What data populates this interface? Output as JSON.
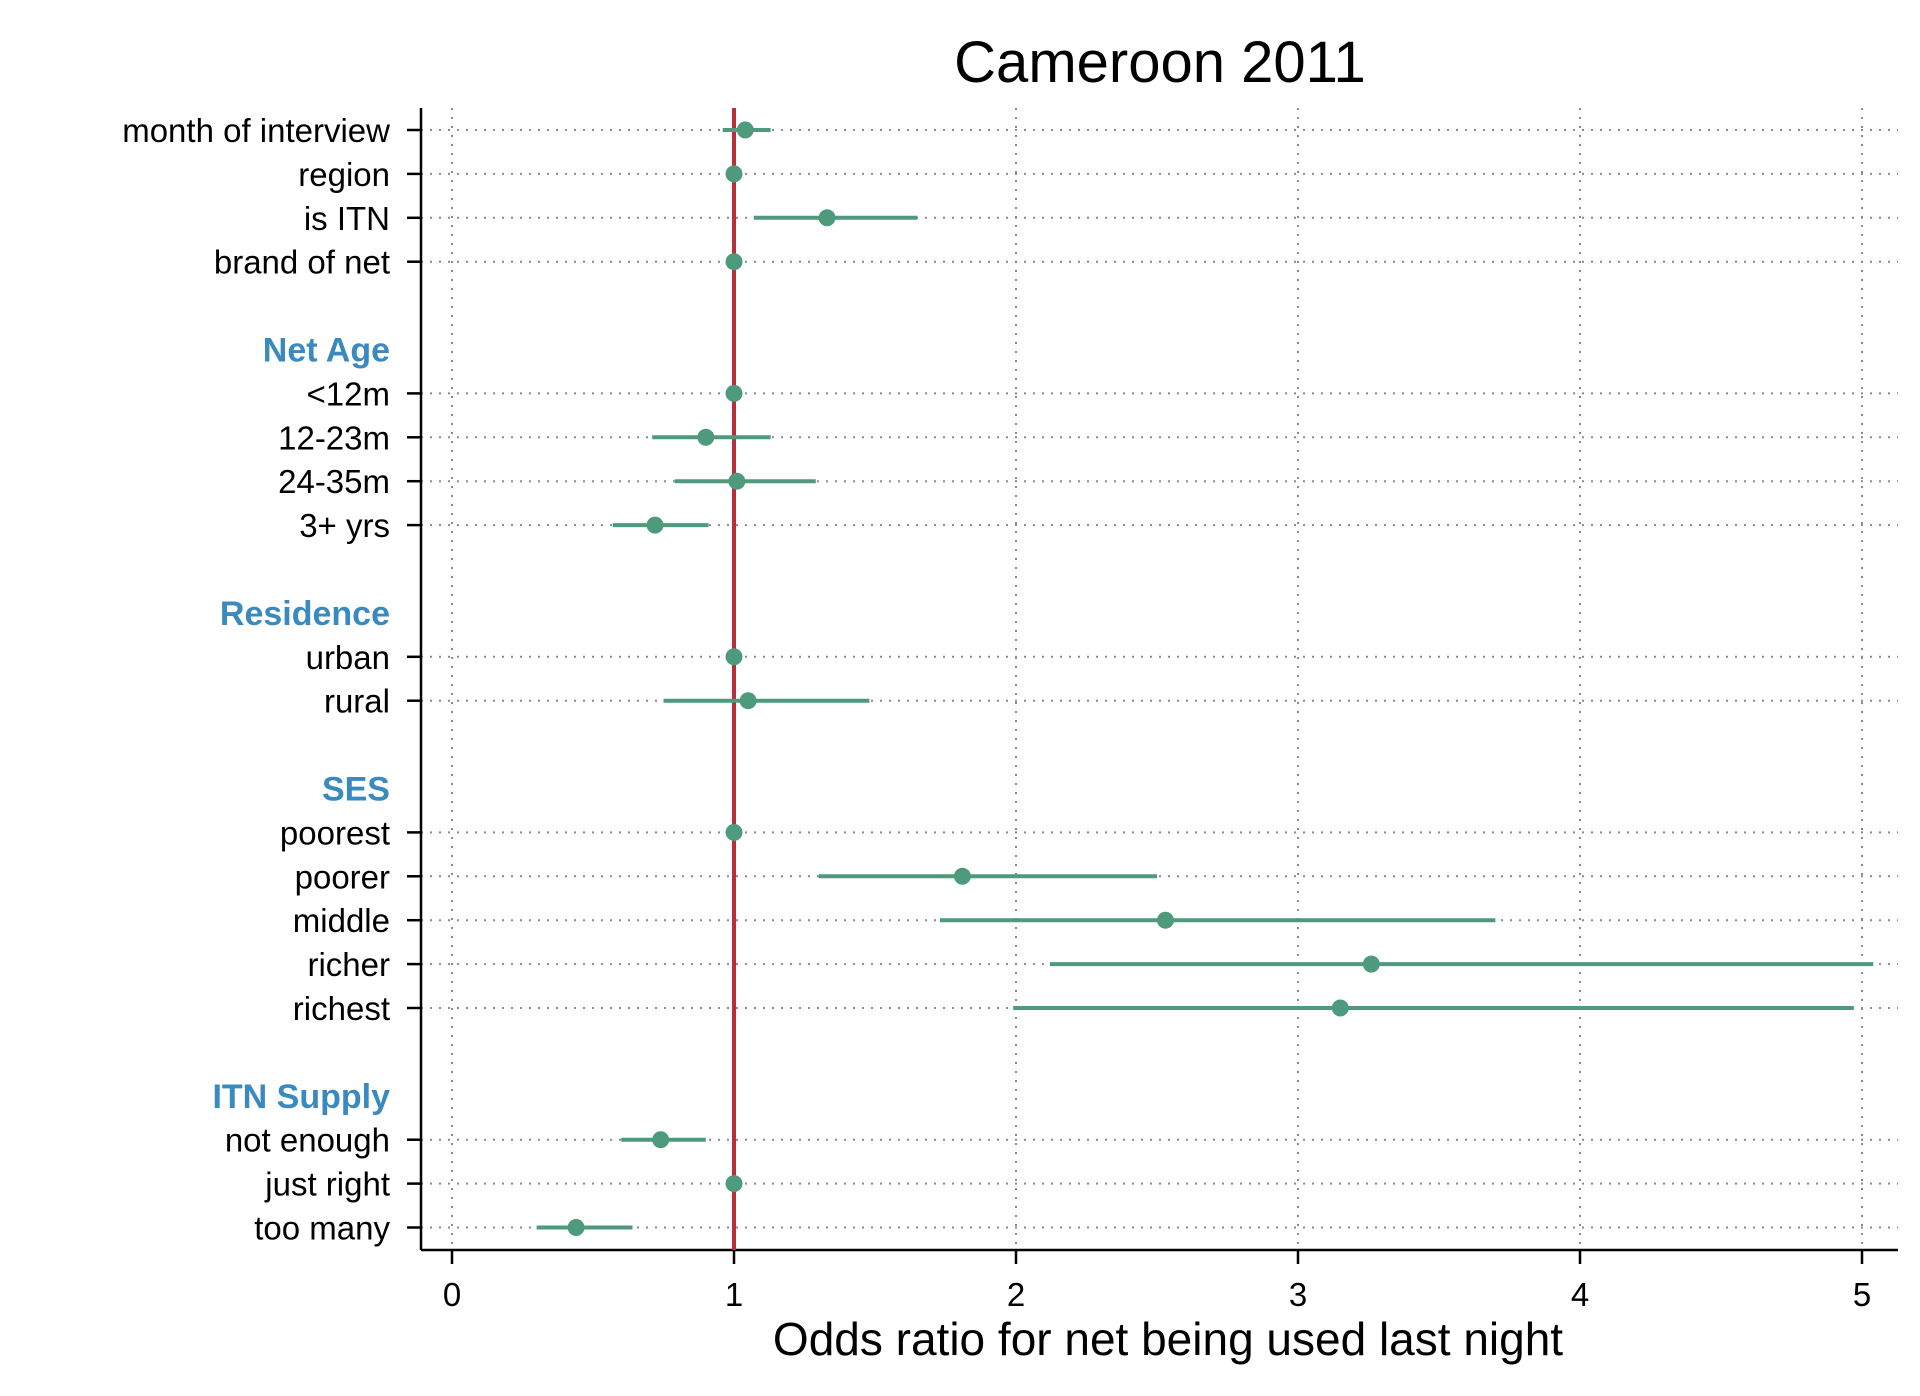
{
  "chart_data": {
    "type": "scatter",
    "subtype": "coefficient-plot-with-confidence-intervals",
    "title": "Cameroon 2011",
    "xlabel": "Odds ratio for net being used last night",
    "xlim": [
      -0.1,
      5.15
    ],
    "xticks": [
      "0",
      "1",
      "2",
      "3",
      "4",
      "5"
    ],
    "reference_line": 1,
    "grid": "dotted",
    "colors": {
      "marker": "#4e9a7c",
      "reference_line": "#b5303a",
      "group_label": "#3a8abf",
      "axis": "#000000",
      "grid": "#8a8a8a"
    },
    "rows": [
      {
        "label": "month of interview",
        "kind": "item",
        "estimate": 1.04,
        "ci": [
          0.96,
          1.13
        ]
      },
      {
        "label": "region",
        "kind": "item",
        "estimate": 1.0,
        "ci": [
          1.0,
          1.0
        ]
      },
      {
        "label": "is ITN",
        "kind": "item",
        "estimate": 1.33,
        "ci": [
          1.07,
          1.65
        ]
      },
      {
        "label": "brand of net",
        "kind": "item",
        "estimate": 1.0,
        "ci": [
          1.0,
          1.0
        ]
      },
      {
        "label": "",
        "kind": "spacer"
      },
      {
        "label": "Net Age",
        "kind": "group"
      },
      {
        "label": "<12m",
        "kind": "item",
        "estimate": 1.0,
        "ci": [
          1.0,
          1.0
        ]
      },
      {
        "label": "12-23m",
        "kind": "item",
        "estimate": 0.9,
        "ci": [
          0.71,
          1.13
        ]
      },
      {
        "label": "24-35m",
        "kind": "item",
        "estimate": 1.01,
        "ci": [
          0.79,
          1.29
        ]
      },
      {
        "label": "3+ yrs",
        "kind": "item",
        "estimate": 0.72,
        "ci": [
          0.57,
          0.91
        ]
      },
      {
        "label": "",
        "kind": "spacer"
      },
      {
        "label": "Residence",
        "kind": "group"
      },
      {
        "label": "urban",
        "kind": "item",
        "estimate": 1.0,
        "ci": [
          1.0,
          1.0
        ]
      },
      {
        "label": "rural",
        "kind": "item",
        "estimate": 1.05,
        "ci": [
          0.75,
          1.48
        ]
      },
      {
        "label": "",
        "kind": "spacer"
      },
      {
        "label": "SES",
        "kind": "group"
      },
      {
        "label": "poorest",
        "kind": "item",
        "estimate": 1.0,
        "ci": [
          1.0,
          1.0
        ]
      },
      {
        "label": "poorer",
        "kind": "item",
        "estimate": 1.81,
        "ci": [
          1.3,
          2.5
        ]
      },
      {
        "label": "middle",
        "kind": "item",
        "estimate": 2.53,
        "ci": [
          1.73,
          3.7
        ]
      },
      {
        "label": "richer",
        "kind": "item",
        "estimate": 3.26,
        "ci": [
          2.12,
          5.04
        ]
      },
      {
        "label": "richest",
        "kind": "item",
        "estimate": 3.15,
        "ci": [
          1.99,
          4.97
        ]
      },
      {
        "label": "",
        "kind": "spacer"
      },
      {
        "label": "ITN Supply",
        "kind": "group"
      },
      {
        "label": "not enough",
        "kind": "item",
        "estimate": 0.74,
        "ci": [
          0.6,
          0.9
        ]
      },
      {
        "label": "just right",
        "kind": "item",
        "estimate": 1.0,
        "ci": [
          1.0,
          1.0
        ]
      },
      {
        "label": "too many",
        "kind": "item",
        "estimate": 0.44,
        "ci": [
          0.3,
          0.64
        ]
      }
    ]
  }
}
